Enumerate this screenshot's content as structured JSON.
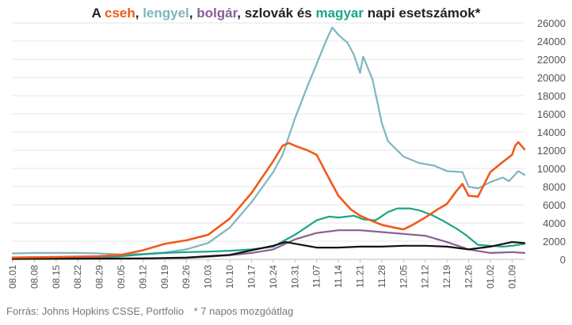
{
  "chart_data": {
    "type": "line",
    "title_parts": [
      {
        "text": "A ",
        "color": "#222222"
      },
      {
        "text": "cseh",
        "color": "#f05a1a"
      },
      {
        "text": ", ",
        "color": "#222222"
      },
      {
        "text": "lengyel",
        "color": "#7fb5c0"
      },
      {
        "text": ", ",
        "color": "#222222"
      },
      {
        "text": "bolgár",
        "color": "#8a5f95"
      },
      {
        "text": ", szlovák és ",
        "color": "#222222"
      },
      {
        "text": "magyar",
        "color": "#1aa585"
      },
      {
        "text": " napi esetszámok*",
        "color": "#222222"
      }
    ],
    "source": "Forrás: Johns Hopkins CSSE, Portfolio",
    "note": "* 7 napos mozgóátlag",
    "ylim": [
      0,
      26000
    ],
    "yticks": [
      0,
      2000,
      4000,
      6000,
      8000,
      10000,
      12000,
      14000,
      16000,
      18000,
      20000,
      22000,
      24000,
      26000
    ],
    "y_axis_side": "right",
    "grid": true,
    "x_start": "2020-08-01",
    "x_end": "2021-01-13",
    "xtick_labels": [
      "08.01",
      "08.08",
      "08.15",
      "08.22",
      "08.29",
      "09.05",
      "09.12",
      "09.19",
      "09.26",
      "10.03",
      "10.10",
      "10.17",
      "10.24",
      "10.31",
      "11.07",
      "11.14",
      "11.21",
      "11.28",
      "12.05",
      "12.12",
      "12.19",
      "12.26",
      "01.02",
      "01.09"
    ],
    "series": [
      {
        "name": "lengyel",
        "color": "#7fb5c0",
        "points": [
          [
            "2020-08-01",
            650
          ],
          [
            "2020-08-08",
            700
          ],
          [
            "2020-08-15",
            700
          ],
          [
            "2020-08-22",
            700
          ],
          [
            "2020-08-29",
            650
          ],
          [
            "2020-09-05",
            550
          ],
          [
            "2020-09-12",
            600
          ],
          [
            "2020-09-19",
            750
          ],
          [
            "2020-09-26",
            1100
          ],
          [
            "2020-10-03",
            1800
          ],
          [
            "2020-10-10",
            3500
          ],
          [
            "2020-10-17",
            6300
          ],
          [
            "2020-10-24",
            9600
          ],
          [
            "2020-10-27",
            11500
          ],
          [
            "2020-10-31",
            15500
          ],
          [
            "2020-11-04",
            19000
          ],
          [
            "2020-11-07",
            21500
          ],
          [
            "2020-11-10",
            24000
          ],
          [
            "2020-11-12",
            25500
          ],
          [
            "2020-11-14",
            24700
          ],
          [
            "2020-11-17",
            23800
          ],
          [
            "2020-11-19",
            22500
          ],
          [
            "2020-11-21",
            20500
          ],
          [
            "2020-11-22",
            22300
          ],
          [
            "2020-11-25",
            19800
          ],
          [
            "2020-11-28",
            15000
          ],
          [
            "2020-11-30",
            13000
          ],
          [
            "2020-12-05",
            11300
          ],
          [
            "2020-12-10",
            10600
          ],
          [
            "2020-12-15",
            10300
          ],
          [
            "2020-12-19",
            9700
          ],
          [
            "2020-12-24",
            9600
          ],
          [
            "2020-12-26",
            8000
          ],
          [
            "2020-12-29",
            7800
          ],
          [
            "2021-01-02",
            8500
          ],
          [
            "2021-01-06",
            9000
          ],
          [
            "2021-01-08",
            8600
          ],
          [
            "2021-01-11",
            9700
          ],
          [
            "2021-01-13",
            9300
          ]
        ]
      },
      {
        "name": "magyar",
        "color": "#1aa585",
        "points": [
          [
            "2020-08-01",
            40
          ],
          [
            "2020-08-15",
            60
          ],
          [
            "2020-08-29",
            200
          ],
          [
            "2020-09-05",
            350
          ],
          [
            "2020-09-12",
            550
          ],
          [
            "2020-09-19",
            700
          ],
          [
            "2020-09-26",
            800
          ],
          [
            "2020-10-03",
            850
          ],
          [
            "2020-10-10",
            950
          ],
          [
            "2020-10-17",
            1100
          ],
          [
            "2020-10-24",
            1400
          ],
          [
            "2020-10-31",
            2700
          ],
          [
            "2020-11-07",
            4300
          ],
          [
            "2020-11-11",
            4700
          ],
          [
            "2020-11-14",
            4600
          ],
          [
            "2020-11-19",
            4800
          ],
          [
            "2020-11-22",
            4400
          ],
          [
            "2020-11-26",
            4300
          ],
          [
            "2020-11-30",
            5200
          ],
          [
            "2020-12-03",
            5600
          ],
          [
            "2020-12-07",
            5600
          ],
          [
            "2020-12-10",
            5400
          ],
          [
            "2020-12-14",
            4900
          ],
          [
            "2020-12-18",
            4200
          ],
          [
            "2020-12-22",
            3400
          ],
          [
            "2020-12-25",
            2700
          ],
          [
            "2020-12-29",
            1600
          ],
          [
            "2021-01-02",
            1500
          ],
          [
            "2021-01-06",
            1400
          ],
          [
            "2021-01-09",
            1500
          ],
          [
            "2021-01-13",
            1700
          ]
        ]
      },
      {
        "name": "bolgár",
        "color": "#8a5f95",
        "points": [
          [
            "2020-08-01",
            150
          ],
          [
            "2020-08-15",
            150
          ],
          [
            "2020-08-29",
            100
          ],
          [
            "2020-09-12",
            100
          ],
          [
            "2020-09-26",
            150
          ],
          [
            "2020-10-03",
            300
          ],
          [
            "2020-10-10",
            450
          ],
          [
            "2020-10-17",
            700
          ],
          [
            "2020-10-24",
            1100
          ],
          [
            "2020-10-31",
            2200
          ],
          [
            "2020-11-07",
            2900
          ],
          [
            "2020-11-14",
            3200
          ],
          [
            "2020-11-21",
            3200
          ],
          [
            "2020-11-28",
            3000
          ],
          [
            "2020-12-05",
            2800
          ],
          [
            "2020-12-12",
            2600
          ],
          [
            "2020-12-19",
            1900
          ],
          [
            "2020-12-26",
            1100
          ],
          [
            "2021-01-02",
            700
          ],
          [
            "2021-01-09",
            800
          ],
          [
            "2021-01-13",
            700
          ]
        ]
      },
      {
        "name": "szlovák",
        "color": "#111111",
        "points": [
          [
            "2020-08-01",
            50
          ],
          [
            "2020-08-29",
            80
          ],
          [
            "2020-09-12",
            100
          ],
          [
            "2020-09-26",
            200
          ],
          [
            "2020-10-03",
            350
          ],
          [
            "2020-10-10",
            500
          ],
          [
            "2020-10-17",
            1000
          ],
          [
            "2020-10-24",
            1500
          ],
          [
            "2020-10-28",
            1900
          ],
          [
            "2020-11-02",
            1600
          ],
          [
            "2020-11-07",
            1300
          ],
          [
            "2020-11-14",
            1300
          ],
          [
            "2020-11-21",
            1400
          ],
          [
            "2020-11-28",
            1400
          ],
          [
            "2020-12-05",
            1500
          ],
          [
            "2020-12-12",
            1500
          ],
          [
            "2020-12-19",
            1400
          ],
          [
            "2020-12-26",
            1100
          ],
          [
            "2021-01-02",
            1400
          ],
          [
            "2021-01-09",
            1900
          ],
          [
            "2021-01-13",
            1800
          ]
        ]
      },
      {
        "name": "cseh",
        "color": "#f05a1a",
        "points": [
          [
            "2020-08-01",
            200
          ],
          [
            "2020-08-15",
            250
          ],
          [
            "2020-08-29",
            350
          ],
          [
            "2020-09-05",
            500
          ],
          [
            "2020-09-12",
            1000
          ],
          [
            "2020-09-19",
            1700
          ],
          [
            "2020-09-26",
            2100
          ],
          [
            "2020-10-03",
            2700
          ],
          [
            "2020-10-10",
            4500
          ],
          [
            "2020-10-17",
            7300
          ],
          [
            "2020-10-24",
            10800
          ],
          [
            "2020-10-27",
            12500
          ],
          [
            "2020-10-29",
            12800
          ],
          [
            "2020-10-31",
            12500
          ],
          [
            "2020-11-04",
            12000
          ],
          [
            "2020-11-07",
            11500
          ],
          [
            "2020-11-11",
            8900
          ],
          [
            "2020-11-14",
            7000
          ],
          [
            "2020-11-18",
            5500
          ],
          [
            "2020-11-21",
            4800
          ],
          [
            "2020-11-25",
            4200
          ],
          [
            "2020-11-28",
            3800
          ],
          [
            "2020-12-02",
            3500
          ],
          [
            "2020-12-05",
            3300
          ],
          [
            "2020-12-08",
            3800
          ],
          [
            "2020-12-12",
            4600
          ],
          [
            "2020-12-16",
            5500
          ],
          [
            "2020-12-19",
            6100
          ],
          [
            "2020-12-22",
            7500
          ],
          [
            "2020-12-24",
            8300
          ],
          [
            "2020-12-26",
            7000
          ],
          [
            "2020-12-29",
            6900
          ],
          [
            "2021-01-02",
            9600
          ],
          [
            "2021-01-06",
            10700
          ],
          [
            "2021-01-09",
            11500
          ],
          [
            "2021-01-10",
            12500
          ],
          [
            "2021-01-11",
            12900
          ],
          [
            "2021-01-13",
            12100
          ]
        ]
      }
    ]
  }
}
